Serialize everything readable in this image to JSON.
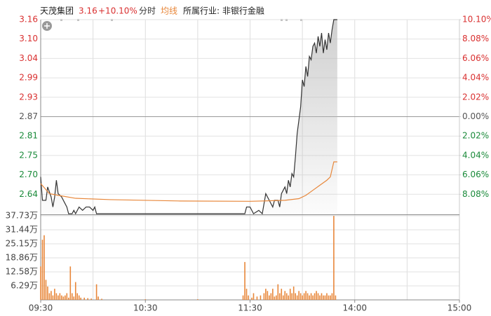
{
  "header": {
    "name": "天茂集团",
    "price": "3.16",
    "change": "+10.10%",
    "industry": "所属行业: 非银行金融"
  },
  "chart_data": [
    {
      "type": "line",
      "up_color": "#d93030",
      "down_color": "#1a8a3a",
      "flat_color": "#555555",
      "fill_color": "#bbbbbb",
      "xlim": [
        0,
        240
      ],
      "xticks": [
        {
          "value": 0,
          "label": "09:30"
        },
        {
          "value": 60,
          "label": "10:30"
        },
        {
          "value": 120,
          "label": "11:30"
        },
        {
          "value": 180,
          "label": "14:00"
        },
        {
          "value": 240,
          "label": "15:00"
        }
      ],
      "ylim": [
        2.58,
        3.16
      ],
      "yticks": [
        3.16,
        {
          "value": 3.102,
          "label": "3.10"
        },
        {
          "value": 3.044,
          "label": "3.04"
        },
        {
          "value": 2.986,
          "label": "2.99"
        },
        {
          "value": 2.928,
          "label": "2.93"
        },
        2.87,
        {
          "value": 2.812,
          "label": "2.81"
        },
        {
          "value": 2.754,
          "label": "2.75"
        },
        {
          "value": 2.696,
          "label": "2.70"
        },
        {
          "value": 2.638,
          "label": "2.64"
        }
      ],
      "y2lim": [
        -10.1,
        10.1
      ],
      "y2ticks": [
        {
          "value": 10.1,
          "label": "10.10%"
        },
        {
          "value": 8.08,
          "label": "8.08%"
        },
        {
          "value": 6.06,
          "label": "6.06%"
        },
        {
          "value": 4.04,
          "label": "4.04%"
        },
        {
          "value": 2.02,
          "label": "2.02%"
        },
        {
          "value": 0,
          "label": "0.00%"
        },
        {
          "value": -2.02,
          "label": "2.02%"
        },
        {
          "value": -4.04,
          "label": "4.04%"
        },
        {
          "value": -6.06,
          "label": "6.06%"
        },
        {
          "value": -8.08,
          "label": "8.08%"
        }
      ],
      "grid": true,
      "series": [
        {
          "name": "分时",
          "color": "#333333",
          "x": [
            0,
            1,
            3,
            4,
            6,
            7,
            8,
            9,
            10,
            12,
            14,
            15,
            16,
            18,
            19,
            20,
            22,
            24,
            26,
            28,
            30,
            31,
            32,
            117,
            118,
            120,
            121,
            122,
            125,
            127,
            128,
            129,
            131,
            133,
            134,
            136,
            137,
            138,
            140,
            141,
            142,
            143,
            144,
            145,
            146,
            147,
            148,
            149,
            150,
            151,
            152,
            153,
            154,
            155,
            156,
            157,
            158,
            159,
            160,
            161,
            162,
            163,
            164,
            165,
            166,
            167,
            168,
            170
          ],
          "values": [
            2.69,
            2.62,
            2.62,
            2.66,
            2.63,
            2.6,
            2.63,
            2.68,
            2.64,
            2.63,
            2.61,
            2.6,
            2.58,
            2.58,
            2.59,
            2.58,
            2.6,
            2.59,
            2.6,
            2.6,
            2.59,
            2.6,
            2.58,
            2.58,
            2.6,
            2.6,
            2.59,
            2.58,
            2.59,
            2.58,
            2.61,
            2.64,
            2.62,
            2.6,
            2.62,
            2.62,
            2.6,
            2.64,
            2.66,
            2.64,
            2.68,
            2.66,
            2.7,
            2.69,
            2.75,
            2.82,
            2.86,
            2.9,
            2.98,
            2.96,
            3.02,
            2.99,
            3.05,
            3.04,
            3.08,
            3.09,
            3.06,
            3.11,
            3.08,
            3.12,
            3.06,
            3.1,
            3.07,
            3.12,
            3.09,
            3.13,
            3.16,
            3.16
          ]
        },
        {
          "name": "均线",
          "color": "#e8873a",
          "x": [
            0,
            5,
            10,
            20,
            40,
            80,
            120,
            140,
            148,
            152,
            156,
            160,
            164,
            166,
            168,
            170
          ],
          "values": [
            2.67,
            2.64,
            2.635,
            2.626,
            2.622,
            2.618,
            2.617,
            2.62,
            2.625,
            2.635,
            2.65,
            2.665,
            2.68,
            2.69,
            2.735,
            2.735
          ]
        }
      ]
    },
    {
      "type": "bar",
      "xlim": [
        0,
        240
      ],
      "ylim": [
        0,
        37.73
      ],
      "yticks": [
        {
          "value": 37.73,
          "label": "37.73万"
        },
        {
          "value": 31.44,
          "label": "31.44万"
        },
        {
          "value": 25.15,
          "label": "25.15万"
        },
        {
          "value": 18.86,
          "label": "18.86万"
        },
        {
          "value": 12.58,
          "label": "12.58万"
        },
        {
          "value": 6.29,
          "label": "6.29万"
        }
      ],
      "grid": true,
      "series": [
        {
          "color": "#e8873a",
          "x": [
            0,
            1,
            2,
            3,
            4,
            5,
            6,
            7,
            8,
            9,
            10,
            11,
            12,
            13,
            14,
            15,
            16,
            17,
            18,
            19,
            20,
            21,
            22,
            23,
            25,
            27,
            29,
            32,
            33,
            35,
            60,
            90,
            116,
            117,
            118,
            119,
            121,
            122,
            124,
            126,
            128,
            129,
            130,
            131,
            132,
            133,
            134,
            135,
            136,
            137,
            138,
            139,
            140,
            141,
            142,
            143,
            144,
            145,
            146,
            147,
            148,
            149,
            150,
            151,
            152,
            153,
            154,
            155,
            156,
            157,
            158,
            159,
            160,
            161,
            162,
            163,
            164,
            165,
            166,
            167,
            168,
            169
          ],
          "values": [
            15,
            27,
            29,
            9,
            6,
            3,
            4,
            2,
            5,
            3,
            2,
            3,
            2,
            1.5,
            2,
            3,
            1,
            15,
            3,
            1.5,
            8,
            3,
            2,
            1,
            1,
            0.8,
            0.6,
            7,
            1.5,
            0.5,
            0.3,
            0.3,
            2,
            17,
            5,
            2,
            1,
            3,
            1.5,
            2,
            3,
            5,
            4,
            2,
            3,
            5,
            1.5,
            2,
            7,
            3,
            5,
            2,
            4,
            3,
            2,
            5,
            3,
            6,
            3,
            2,
            4,
            3,
            2,
            3,
            4,
            3,
            2,
            3,
            2,
            3,
            4,
            3,
            2,
            3,
            2,
            2,
            3,
            2,
            2,
            3,
            37.7,
            2
          ]
        }
      ]
    }
  ]
}
